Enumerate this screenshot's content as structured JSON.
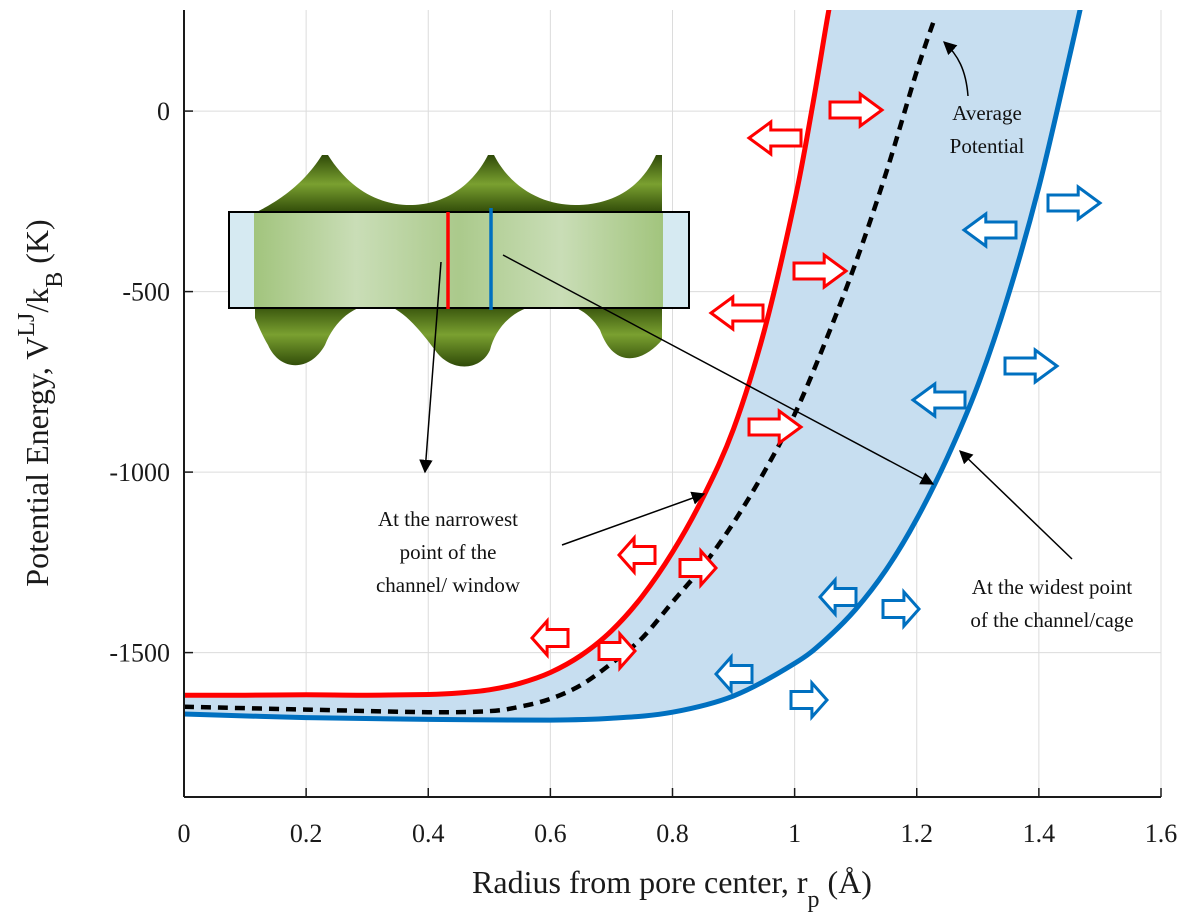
{
  "chart_data": {
    "type": "line",
    "xlabel": "Radius from pore center, r",
    "xlabel_sub": "p",
    "xlabel_unit": " (Å)",
    "ylabel": "Potential Energy, V",
    "ylabel_sup": "LJ",
    "ylabel_mid": "/k",
    "ylabel_sub": "B",
    "ylabel_unit": " (K)",
    "xlim": [
      0,
      1.6
    ],
    "ylim": [
      -1900,
      280
    ],
    "xticks": [
      0,
      0.2,
      0.4,
      0.6,
      0.8,
      1,
      1.2,
      1.4,
      1.6
    ],
    "xtick_labels": [
      "0",
      "0.2",
      "0.4",
      "0.6",
      "0.8",
      "1",
      "1.2",
      "1.4",
      "1.6"
    ],
    "yticks": [
      0,
      -500,
      -1000,
      -1500
    ],
    "ytick_labels": [
      "0",
      "-500",
      "-1000",
      "-1500"
    ],
    "grid": true,
    "series": [
      {
        "color": "#ff0000",
        "style": "solid",
        "x": [
          0,
          0.1,
          0.2,
          0.3,
          0.4,
          0.45,
          0.5,
          0.55,
          0.6,
          0.65,
          0.7,
          0.75,
          0.8,
          0.85,
          0.9,
          0.95,
          1.0,
          1.03,
          1.055,
          1.07
        ],
        "y": [
          -1618,
          -1618,
          -1617,
          -1618,
          -1616,
          -1612,
          -1603,
          -1585,
          -1555,
          -1508,
          -1440,
          -1345,
          -1222,
          -1070,
          -880,
          -610,
          -250,
          20,
          270,
          400
        ]
      },
      {
        "color": "#000000",
        "style": "dashed",
        "x": [
          0,
          0.2,
          0.4,
          0.5,
          0.55,
          0.6,
          0.65,
          0.7,
          0.75,
          0.8,
          0.85,
          0.9,
          0.95,
          1.0,
          1.05,
          1.1,
          1.15,
          1.2,
          1.23
        ],
        "y": [
          -1650,
          -1658,
          -1665,
          -1662,
          -1650,
          -1628,
          -1590,
          -1530,
          -1460,
          -1360,
          -1260,
          -1140,
          -1000,
          -840,
          -640,
          -420,
          -170,
          110,
          260
        ]
      },
      {
        "color": "#0070c0",
        "style": "solid",
        "x": [
          0,
          0.2,
          0.4,
          0.6,
          0.7,
          0.8,
          0.9,
          1.0,
          1.05,
          1.1,
          1.15,
          1.2,
          1.25,
          1.3,
          1.35,
          1.4,
          1.45,
          1.47
        ],
        "y": [
          -1670,
          -1680,
          -1685,
          -1687,
          -1682,
          -1665,
          -1620,
          -1530,
          -1465,
          -1380,
          -1270,
          -1130,
          -960,
          -760,
          -510,
          -210,
          150,
          300
        ]
      }
    ],
    "band_fill": "#c7def0",
    "annotations": {
      "average": [
        "Average",
        "Potential"
      ],
      "narrowest": [
        "At the narrowest",
        "point of the",
        "channel/ window"
      ],
      "widest": [
        "At the widest point",
        "of the channel/cage"
      ]
    },
    "colors": {
      "red": "#ff0000",
      "blue": "#0070c0",
      "dashed": "#000000",
      "inset_green": "#6a8a2a"
    }
  }
}
